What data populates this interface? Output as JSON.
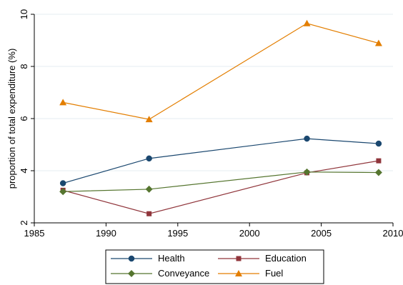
{
  "chart_data": {
    "type": "line",
    "xlabel": "",
    "ylabel": "proportion of total expenditure (%)",
    "xlim": [
      1985,
      2010
    ],
    "ylim": [
      2,
      10
    ],
    "xticks": [
      1985,
      1990,
      1995,
      2000,
      2005,
      2010
    ],
    "yticks": [
      2,
      4,
      6,
      8,
      10
    ],
    "grid": true,
    "legend_position": "bottom",
    "x": [
      1987,
      1993,
      2004,
      2009
    ],
    "series": [
      {
        "name": "Health",
        "values": [
          3.52,
          4.47,
          5.23,
          5.04
        ],
        "color": "#1a476f",
        "marker": "circle"
      },
      {
        "name": "Education",
        "values": [
          3.25,
          2.35,
          3.92,
          4.38
        ],
        "color": "#90353b",
        "marker": "square"
      },
      {
        "name": "Conveyance",
        "values": [
          3.2,
          3.29,
          3.95,
          3.93
        ],
        "color": "#55752f",
        "marker": "diamond"
      },
      {
        "name": "Fuel",
        "values": [
          6.62,
          5.97,
          9.65,
          8.89
        ],
        "color": "#e37e00",
        "marker": "triangle"
      }
    ]
  }
}
